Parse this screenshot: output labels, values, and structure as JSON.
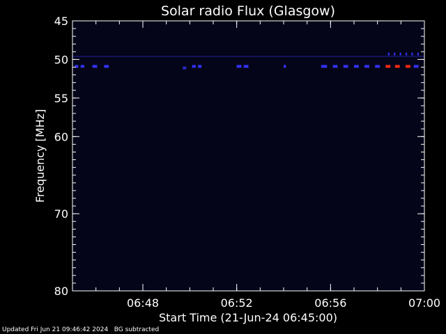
{
  "chart_data": {
    "type": "heatmap",
    "title": "Solar radio Flux (Glasgow)",
    "xlabel": "Start Time (21-Jun-24 06:45:00)",
    "ylabel": "Frequency [MHz]",
    "x_range_minutes": [
      0,
      15
    ],
    "y_range_mhz": [
      45,
      80
    ],
    "x_ticks": [
      {
        "label": "06:48",
        "minute": 3
      },
      {
        "label": "06:52",
        "minute": 7
      },
      {
        "label": "06:56",
        "minute": 11
      },
      {
        "label": "07:00",
        "minute": 15
      }
    ],
    "y_ticks": [
      {
        "label": "45",
        "mhz": 45
      },
      {
        "label": "50",
        "mhz": 50
      },
      {
        "label": "55",
        "mhz": 55
      },
      {
        "label": "60",
        "mhz": 60
      },
      {
        "label": "70",
        "mhz": 70
      },
      {
        "label": "80",
        "mhz": 80
      }
    ],
    "emission_bands": [
      {
        "mhz": 50.9,
        "intensity": "medium",
        "segments_minutes": [
          [
            0.1,
            0.25
          ],
          [
            0.35,
            0.5
          ],
          [
            0.85,
            1.05
          ],
          [
            1.35,
            1.55
          ]
        ]
      },
      {
        "mhz": 51.1,
        "intensity": "low",
        "segments_minutes": [
          [
            4.7,
            4.85
          ]
        ]
      },
      {
        "mhz": 50.9,
        "intensity": "medium",
        "segments_minutes": [
          [
            5.1,
            5.25
          ],
          [
            5.35,
            5.5
          ],
          [
            7.0,
            7.2
          ],
          [
            7.3,
            7.5
          ],
          [
            9.0,
            9.1
          ],
          [
            10.6,
            10.85
          ],
          [
            11.1,
            11.3
          ],
          [
            11.55,
            11.75
          ],
          [
            12.0,
            12.2
          ],
          [
            12.45,
            12.65
          ],
          [
            12.9,
            13.1
          ]
        ]
      },
      {
        "mhz": 50.9,
        "intensity": "high",
        "segments_minutes": [
          [
            13.35,
            13.55
          ],
          [
            13.75,
            13.95
          ],
          [
            14.2,
            14.4
          ]
        ]
      },
      {
        "mhz": 50.9,
        "intensity": "medium",
        "segments_minutes": [
          [
            14.55,
            14.75
          ]
        ]
      },
      {
        "mhz": 49.6,
        "intensity": "faint",
        "segments_minutes": [
          [
            0.0,
            15.0
          ]
        ]
      },
      {
        "mhz": 49.3,
        "intensity": "medium",
        "segments_minutes": [
          [
            13.45,
            13.5
          ],
          [
            13.7,
            13.75
          ],
          [
            13.95,
            14.0
          ],
          [
            14.2,
            14.25
          ],
          [
            14.45,
            14.5
          ],
          [
            14.7,
            14.75
          ]
        ]
      }
    ],
    "colors": {
      "background": "#05051a",
      "faint": "#1a1a8a",
      "low": "#2a2acc",
      "medium": "#3333ff",
      "high": "#ff2a10"
    }
  },
  "footer": {
    "updated": "Updated Fri Jun 21 09:46:42 2024",
    "bg": "BG subtracted"
  }
}
